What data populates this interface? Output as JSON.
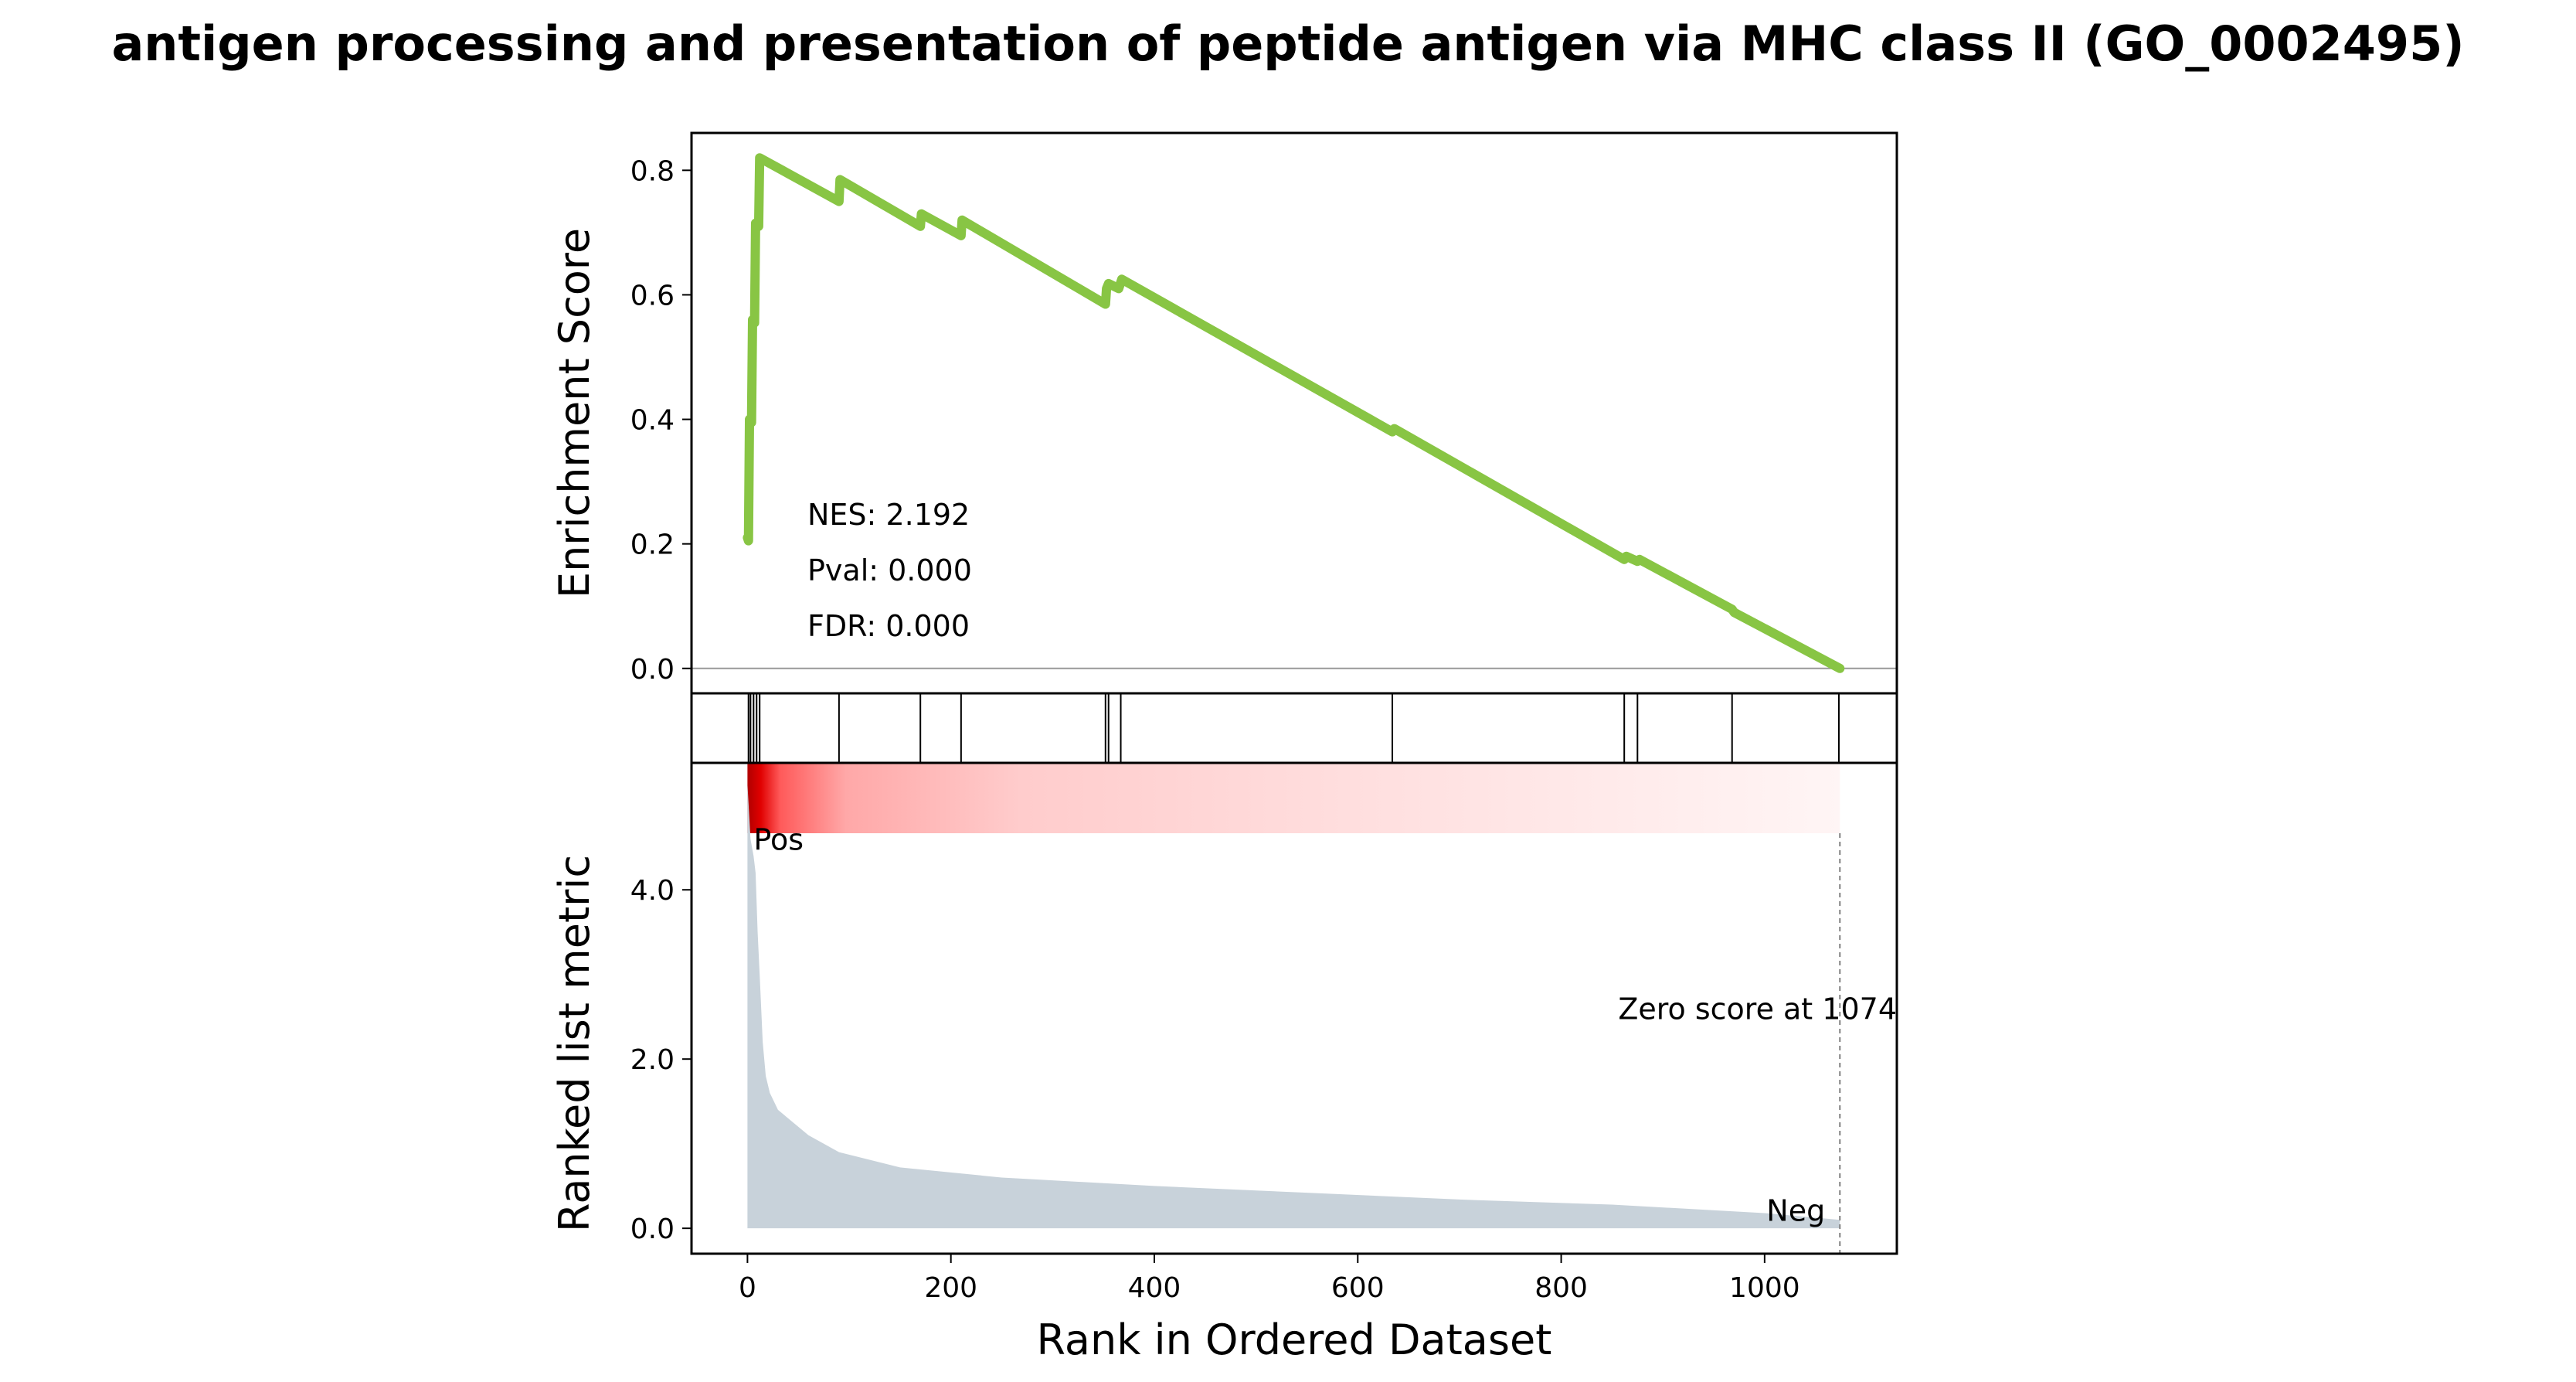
{
  "chart_data": {
    "type": "line",
    "title": "antigen processing and presentation of peptide antigen via MHC class II (GO_0002495)",
    "xlabel": "Rank in Ordered Dataset",
    "xlim": [
      -55,
      1130
    ],
    "x_ticks": [
      0,
      200,
      400,
      600,
      800,
      1000
    ],
    "es_panel": {
      "ylabel": "Enrichment Score",
      "ylim": [
        -0.04,
        0.86
      ],
      "y_ticks": [
        "0.0",
        "0.2",
        "0.4",
        "0.6",
        "0.8"
      ],
      "line_color": "#88c544",
      "zero_line": true,
      "points": [
        [
          0,
          0.21
        ],
        [
          1,
          0.205
        ],
        [
          2,
          0.4
        ],
        [
          4,
          0.395
        ],
        [
          5,
          0.56
        ],
        [
          7,
          0.555
        ],
        [
          8,
          0.715
        ],
        [
          11,
          0.71
        ],
        [
          12,
          0.82
        ],
        [
          90,
          0.75
        ],
        [
          91,
          0.785
        ],
        [
          170,
          0.71
        ],
        [
          171,
          0.73
        ],
        [
          210,
          0.695
        ],
        [
          211,
          0.72
        ],
        [
          352,
          0.585
        ],
        [
          353,
          0.61
        ],
        [
          355,
          0.618
        ],
        [
          365,
          0.61
        ],
        [
          368,
          0.625
        ],
        [
          634,
          0.38
        ],
        [
          636,
          0.385
        ],
        [
          862,
          0.175
        ],
        [
          864,
          0.18
        ],
        [
          875,
          0.172
        ],
        [
          877,
          0.175
        ],
        [
          968,
          0.095
        ],
        [
          970,
          0.09
        ],
        [
          1074,
          0.0
        ]
      ],
      "stats": {
        "nes": "NES: 2.192",
        "pval": "Pval: 0.000",
        "fdr": "FDR: 0.000"
      }
    },
    "hits_panel": {
      "hit_ranks": [
        1,
        3,
        6,
        9,
        12,
        90,
        170,
        210,
        352,
        355,
        367,
        634,
        862,
        875,
        968,
        1073
      ]
    },
    "metric_panel": {
      "ylabel": "Ranked list metric",
      "ylim": [
        -0.3,
        5.5
      ],
      "y_ticks": [
        "0.0",
        "2.0",
        "4.0"
      ],
      "fill_color": "#c8d2da",
      "heatmap_color": "#e00000",
      "points": [
        [
          0,
          5.25
        ],
        [
          3,
          4.6
        ],
        [
          6,
          4.4
        ],
        [
          8,
          4.2
        ],
        [
          10,
          3.5
        ],
        [
          12,
          3.0
        ],
        [
          15,
          2.2
        ],
        [
          18,
          1.8
        ],
        [
          22,
          1.6
        ],
        [
          30,
          1.4
        ],
        [
          40,
          1.3
        ],
        [
          60,
          1.1
        ],
        [
          90,
          0.9
        ],
        [
          150,
          0.72
        ],
        [
          250,
          0.6
        ],
        [
          400,
          0.5
        ],
        [
          550,
          0.42
        ],
        [
          700,
          0.34
        ],
        [
          850,
          0.28
        ],
        [
          1000,
          0.18
        ],
        [
          1074,
          0.1
        ]
      ],
      "pos_label": "Pos",
      "neg_label": "Neg",
      "pos_color": "#ff0000",
      "neg_color": "#0000ff",
      "zero_score_rank": 1074,
      "zero_score_label": "Zero score at 1074"
    }
  }
}
